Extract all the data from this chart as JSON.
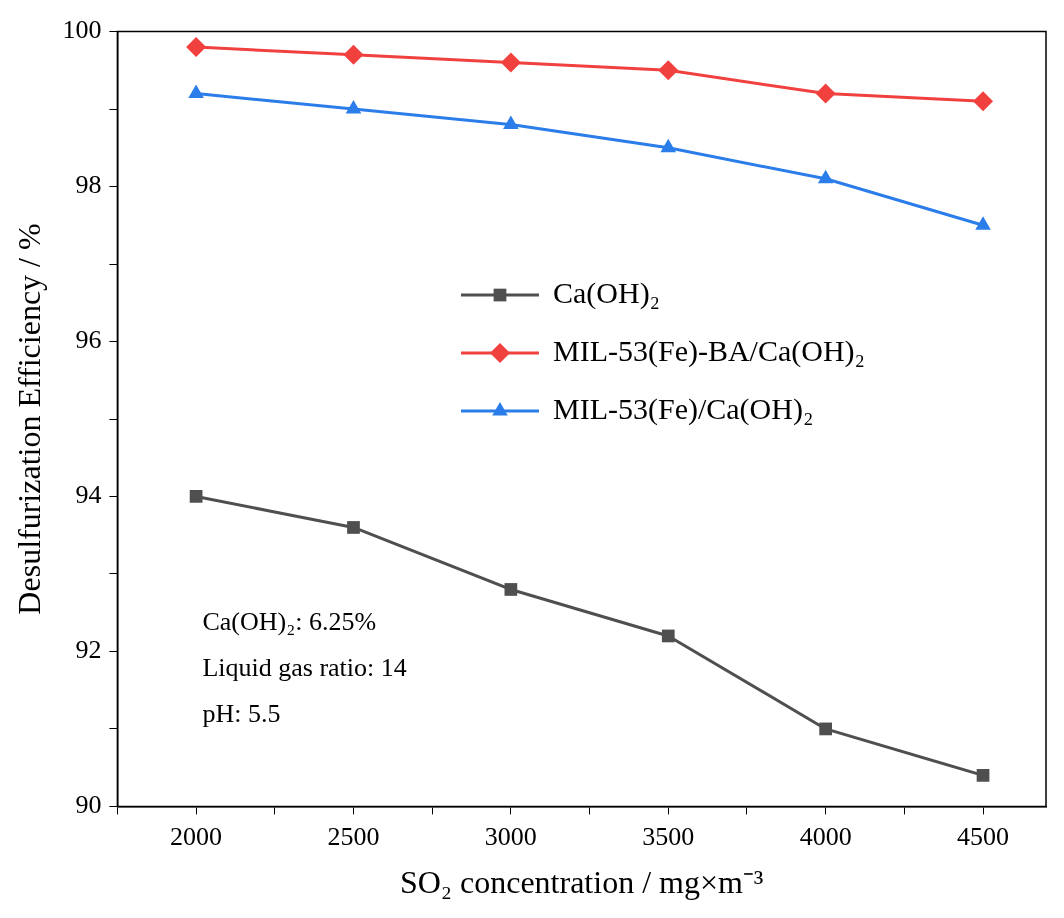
{
  "chart_data": {
    "type": "line",
    "xlabel": "SO₂ concentration / mg×m⁻³",
    "ylabel": "Desulfurization Efficiency / %",
    "x": [
      2000,
      2500,
      3000,
      3500,
      4000,
      4500
    ],
    "series": [
      {
        "name": "Ca(OH)₂",
        "color": "#4f4f4f",
        "marker": "square",
        "values": [
          94.0,
          93.6,
          92.8,
          92.2,
          91.0,
          90.4
        ]
      },
      {
        "name": "MIL-53(Fe)-BA/Ca(OH)₂",
        "color": "#f0413f",
        "marker": "diamond",
        "values": [
          99.8,
          99.7,
          99.6,
          99.5,
          99.2,
          99.1
        ]
      },
      {
        "name": "MIL-53(Fe)/Ca(OH)₂",
        "color": "#2b7de9",
        "marker": "triangle",
        "values": [
          99.2,
          99.0,
          98.8,
          98.5,
          98.1,
          97.5
        ]
      }
    ],
    "xlim": [
      1750,
      4700
    ],
    "xticks": [
      {
        "value": 1750,
        "label": null
      },
      2000,
      {
        "value": 2250,
        "label": null
      },
      2500,
      {
        "value": 2750,
        "label": null
      },
      3000,
      {
        "value": 3250,
        "label": null
      },
      3500,
      {
        "value": 3750,
        "label": null
      },
      4000,
      {
        "value": 4250,
        "label": null
      },
      4500
    ],
    "ylim": [
      90,
      100
    ],
    "yticks": [
      90,
      {
        "value": 91,
        "label": null
      },
      92,
      {
        "value": 93,
        "label": null
      },
      94,
      {
        "value": 95,
        "label": null
      },
      96,
      {
        "value": 97,
        "label": null
      },
      98,
      {
        "value": 99,
        "label": null
      },
      100
    ],
    "annotations": [
      "Ca(OH)₂: 6.25%",
      "Liquid gas ratio: 14",
      "pH: 5.5"
    ],
    "legend": "right",
    "grid": false,
    "line_style": "solid"
  }
}
